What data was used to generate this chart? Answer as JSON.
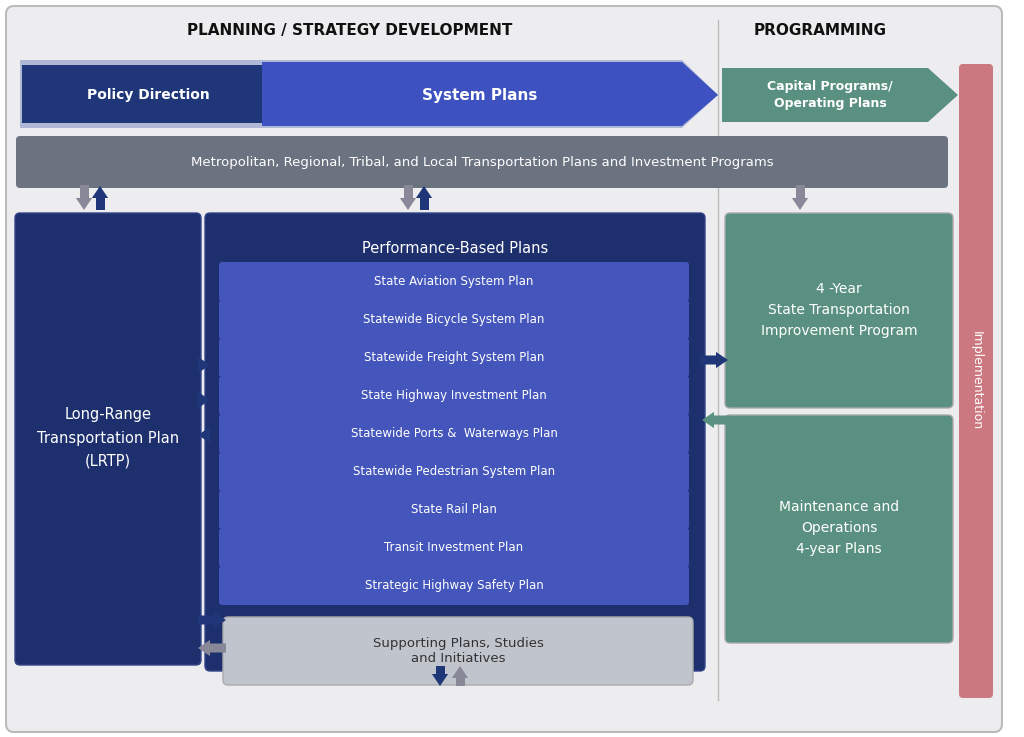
{
  "bg_color": "#ededef",
  "outer_bg": "#ffffff",
  "title_planning": "PLANNING / STRATEGY DEVELOPMENT",
  "title_programming": "PROGRAMMING",
  "title_implementation": "Implementation",
  "arrow_blue_dark": "#1f3778",
  "arrow_blue_mid": "#3d52c0",
  "arrow_green": "#5a9080",
  "box_dark_navy": "#1e2f6e",
  "box_medium_blue": "#4455bb",
  "box_green": "#5a9080",
  "box_gray_dark": "#6b7280",
  "box_gray_light": "#c0c4cc",
  "text_white": "#ffffff",
  "text_dark": "#2c2c2c",
  "pink_bar": "#cc7880",
  "arrow_gray": "#888899",
  "policy_label": "Policy Direction",
  "system_label": "System Plans",
  "capital_label": "Capital Programs/\nOperating Plans",
  "metro_label": "Metropolitan, Regional, Tribal, and Local Transportation Plans and Investment Programs",
  "lrtp_label": "Long-Range\nTransportation Plan\n(LRTP)",
  "perf_label": "Performance-Based Plans",
  "stip_label": "4 -Year\nState Transportation\nImprovement Program",
  "maint_label": "Maintenance and\nOperations\n4-year Plans",
  "support_label": "Supporting Plans, Studies\nand Initiatives",
  "plans": [
    "State Aviation System Plan",
    "Statewide Bicycle System Plan",
    "Statewide Freight System Plan",
    "State Highway Investment Plan",
    "Statewide Ports &  Waterways Plan",
    "Statewide Pedestrian System Plan",
    "State Rail Plan",
    "Transit Investment Plan",
    "Strategic Highway Safety Plan"
  ]
}
